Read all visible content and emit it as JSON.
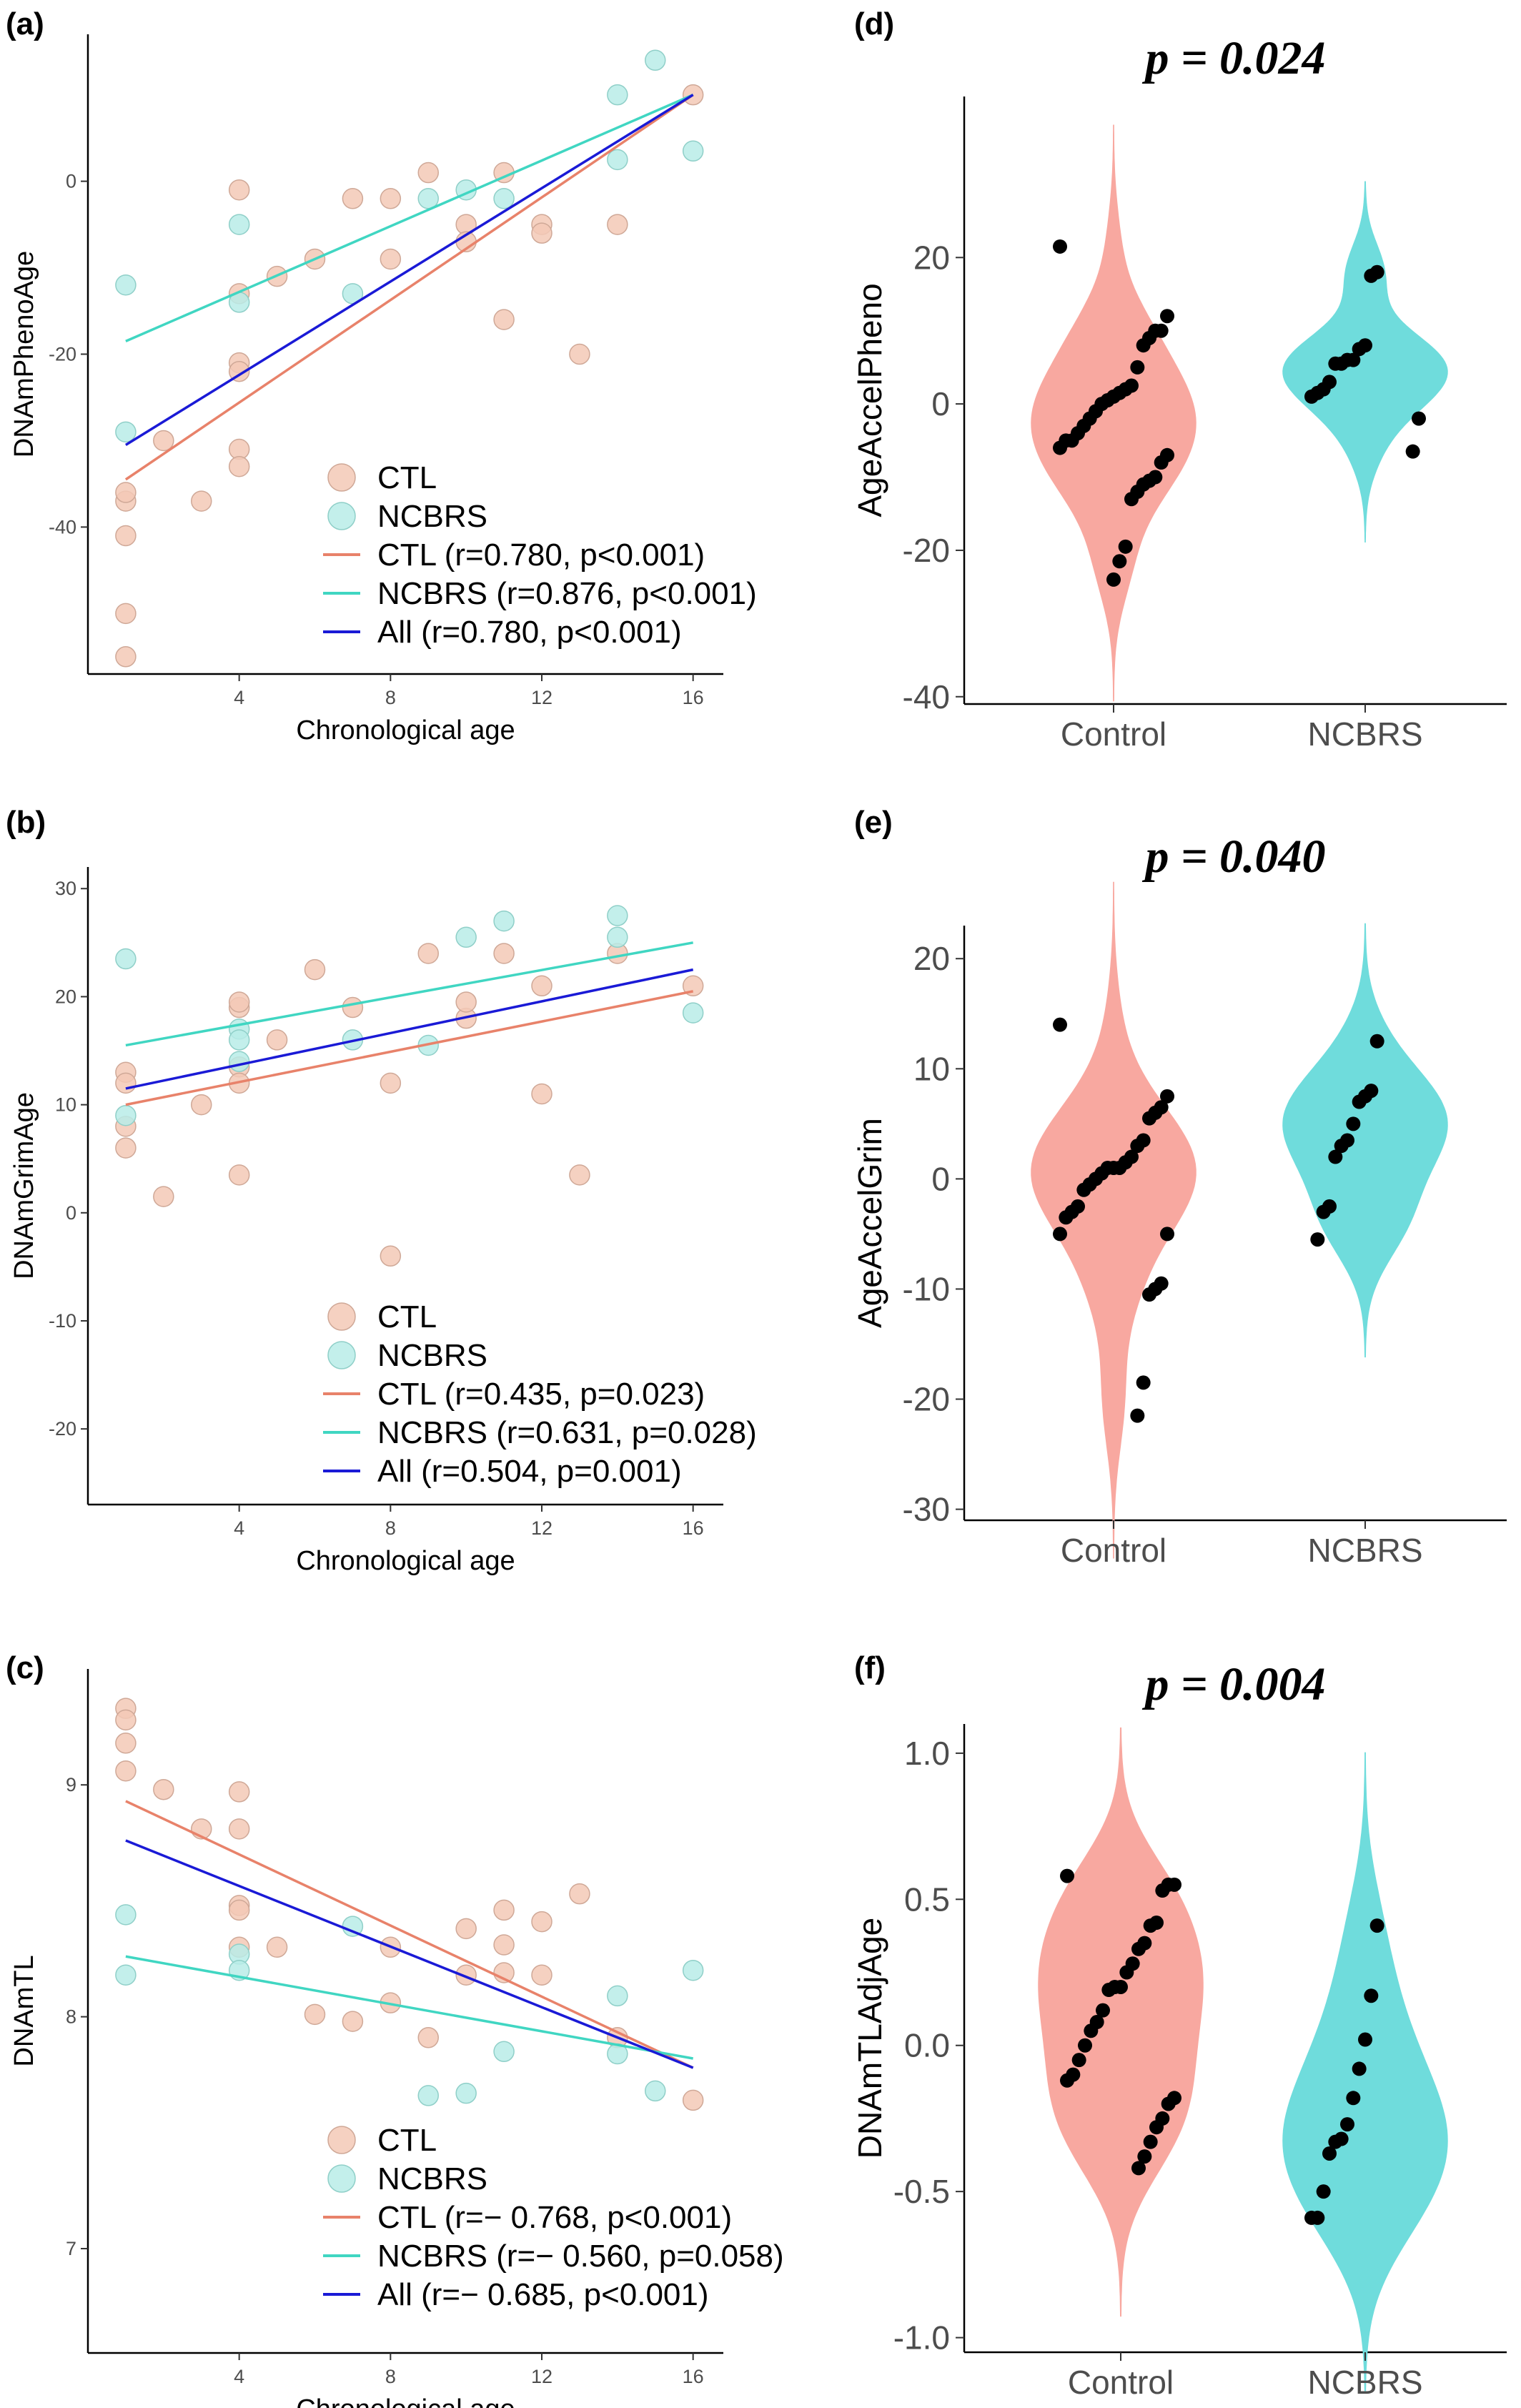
{
  "colors": {
    "ctl_point_fill": "#f3c9b6",
    "ctl_point_stroke": "#cfa897",
    "ncbrs_point_fill": "#b9ece7",
    "ncbrs_point_stroke": "#8fcfc8",
    "ctl_line": "#e8826a",
    "ncbrs_line": "#40d6c2",
    "all_line": "#1a1ad6",
    "violin_control": "#f8a8a0",
    "violin_ncbrs": "#6fdcdc",
    "dot": "#000000"
  },
  "chart_data": [
    {
      "panel": "(a)",
      "type": "scatter",
      "xlabel": "Chronological age",
      "ylabel": "DNAmPhenoAge",
      "xlim": [
        0,
        16.8
      ],
      "ylim": [
        -57,
        17
      ],
      "xticks": [
        4,
        8,
        12,
        16
      ],
      "yticks": [
        -40,
        -20,
        0
      ],
      "grid": false,
      "legend_position": "bottom-right",
      "legend": [
        {
          "kind": "point",
          "group": "ctl",
          "label": "CTL"
        },
        {
          "kind": "point",
          "group": "ncbrs",
          "label": "NCBRS"
        },
        {
          "kind": "line",
          "group": "ctl",
          "label": "CTL (r=0.780, p<0.001)"
        },
        {
          "kind": "line",
          "group": "ncbrs",
          "label": "NCBRS (r=0.876, p<0.001)"
        },
        {
          "kind": "line",
          "group": "all",
          "label": "All (r=0.780, p<0.001)"
        }
      ],
      "series": [
        {
          "group": "ctl",
          "kind": "points",
          "x": [
            1,
            1,
            1,
            1,
            1,
            2,
            3,
            4,
            4,
            4,
            4,
            4,
            4,
            5,
            6,
            7,
            8,
            8,
            9,
            10,
            10,
            11,
            11,
            12,
            12,
            13,
            14,
            16
          ],
          "y": [
            -37,
            -41,
            -50,
            -55,
            -36,
            -30,
            -37,
            -1,
            -21,
            -22,
            -31,
            -33,
            -13,
            -11,
            -9,
            -2,
            -2,
            -9,
            1,
            -5,
            -7,
            1,
            -16,
            -5,
            -6,
            -20,
            -5,
            10
          ]
        },
        {
          "group": "ncbrs",
          "kind": "points",
          "x": [
            1,
            1,
            4,
            4,
            7,
            9,
            10,
            11,
            14,
            14,
            15,
            16
          ],
          "y": [
            -12,
            -29,
            -5,
            -14,
            -13,
            -2,
            -1,
            -2,
            10,
            2.5,
            14,
            3.5
          ]
        },
        {
          "group": "ctl",
          "kind": "line",
          "x": [
            1,
            16
          ],
          "y": [
            -34.5,
            10
          ]
        },
        {
          "group": "ncbrs",
          "kind": "line",
          "x": [
            1,
            16
          ],
          "y": [
            -18.5,
            10
          ]
        },
        {
          "group": "all",
          "kind": "line",
          "x": [
            1,
            16
          ],
          "y": [
            -30.5,
            10
          ]
        }
      ]
    },
    {
      "panel": "(b)",
      "type": "scatter",
      "xlabel": "Chronological age",
      "ylabel": "DNAmGrimAge",
      "xlim": [
        0,
        16.8
      ],
      "ylim": [
        -27,
        32
      ],
      "xticks": [
        4,
        8,
        12,
        16
      ],
      "yticks": [
        -20,
        -10,
        0,
        10,
        20,
        30
      ],
      "grid": false,
      "legend_position": "bottom-right",
      "legend": [
        {
          "kind": "point",
          "group": "ctl",
          "label": "CTL"
        },
        {
          "kind": "point",
          "group": "ncbrs",
          "label": "NCBRS"
        },
        {
          "kind": "line",
          "group": "ctl",
          "label": "CTL (r=0.435, p=0.023)"
        },
        {
          "kind": "line",
          "group": "ncbrs",
          "label": "NCBRS (r=0.631, p=0.028)"
        },
        {
          "kind": "line",
          "group": "all",
          "label": "All (r=0.504, p=0.001)"
        }
      ],
      "series": [
        {
          "group": "ctl",
          "kind": "points",
          "x": [
            1,
            1,
            1,
            1,
            2,
            3,
            4,
            4,
            4,
            4,
            4,
            5,
            6,
            7,
            8,
            8,
            9,
            10,
            10,
            11,
            12,
            12,
            13,
            14,
            16
          ],
          "y": [
            13,
            12,
            8,
            6,
            1.5,
            10,
            19,
            13.5,
            12,
            3.5,
            19.5,
            16,
            22.5,
            19,
            12,
            -4,
            24,
            18,
            19.5,
            24,
            21,
            11,
            3.5,
            24,
            21
          ]
        },
        {
          "group": "ncbrs",
          "kind": "points",
          "x": [
            1,
            1,
            4,
            4,
            4,
            7,
            9,
            10,
            11,
            14,
            14,
            16
          ],
          "y": [
            23.5,
            9,
            17,
            16,
            14,
            16,
            15.5,
            25.5,
            27,
            27.5,
            25.5,
            18.5
          ]
        },
        {
          "group": "ctl",
          "kind": "line",
          "x": [
            1,
            16
          ],
          "y": [
            10,
            20.5
          ]
        },
        {
          "group": "ncbrs",
          "kind": "line",
          "x": [
            1,
            16
          ],
          "y": [
            15.5,
            25
          ]
        },
        {
          "group": "all",
          "kind": "line",
          "x": [
            1,
            16
          ],
          "y": [
            11.5,
            22.5
          ]
        }
      ]
    },
    {
      "panel": "(c)",
      "type": "scatter",
      "xlabel": "Chronological age",
      "ylabel": "DNAmTL",
      "xlim": [
        0,
        16.8
      ],
      "ylim": [
        6.55,
        9.5
      ],
      "xticks": [
        4,
        8,
        12,
        16
      ],
      "yticks": [
        7,
        8,
        9
      ],
      "grid": false,
      "legend_position": "bottom-right",
      "legend": [
        {
          "kind": "point",
          "group": "ctl",
          "label": "CTL"
        },
        {
          "kind": "point",
          "group": "ncbrs",
          "label": "NCBRS"
        },
        {
          "kind": "line",
          "group": "ctl",
          "label": "CTL (r=− 0.768, p<0.001)"
        },
        {
          "kind": "line",
          "group": "ncbrs",
          "label": "NCBRS (r=− 0.560, p=0.058)"
        },
        {
          "kind": "line",
          "group": "all",
          "label": "All (r=− 0.685, p<0.001)"
        }
      ],
      "series": [
        {
          "group": "ctl",
          "kind": "points",
          "x": [
            1,
            1,
            1,
            1,
            2,
            3,
            4,
            4,
            4,
            4,
            4,
            5,
            6,
            7,
            8,
            8,
            9,
            10,
            10,
            11,
            11,
            11,
            12,
            12,
            13,
            14,
            16
          ],
          "y": [
            9.33,
            9.28,
            9.18,
            9.06,
            8.98,
            8.81,
            8.97,
            8.81,
            8.48,
            8.46,
            8.3,
            8.3,
            8.01,
            7.98,
            8.3,
            8.06,
            7.91,
            8.38,
            8.18,
            8.46,
            8.31,
            8.19,
            8.41,
            8.18,
            8.53,
            7.91,
            7.64
          ]
        },
        {
          "group": "ncbrs",
          "kind": "points",
          "x": [
            1,
            1,
            4,
            4,
            7,
            9,
            10,
            11,
            14,
            14,
            15,
            16
          ],
          "y": [
            8.44,
            8.18,
            8.27,
            8.2,
            8.39,
            7.66,
            7.67,
            7.85,
            8.09,
            7.84,
            7.68,
            8.2
          ]
        },
        {
          "group": "ctl",
          "kind": "line",
          "x": [
            1,
            16
          ],
          "y": [
            8.93,
            7.78
          ]
        },
        {
          "group": "ncbrs",
          "kind": "line",
          "x": [
            1,
            16
          ],
          "y": [
            8.26,
            7.82
          ]
        },
        {
          "group": "all",
          "kind": "line",
          "x": [
            1,
            16
          ],
          "y": [
            8.76,
            7.78
          ]
        }
      ]
    },
    {
      "panel": "(d)",
      "type": "violin",
      "title": "p = 0.024",
      "ylabel": "AgeAccelPheno",
      "categories": [
        "Control",
        "NCBRS"
      ],
      "ylim": [
        -41,
        42
      ],
      "yticks": [
        -40,
        -20,
        0,
        20
      ],
      "grid": false,
      "series": [
        {
          "name": "Control",
          "values": [
            21.5,
            12,
            10,
            10,
            9,
            8,
            5,
            2.5,
            2,
            1.5,
            1,
            0.5,
            0,
            -1,
            -2,
            -3,
            -4,
            -5,
            -5,
            -6,
            -7,
            -8,
            -10,
            -10.5,
            -11,
            -12,
            -13,
            -19.5,
            -21.5,
            -24
          ]
        },
        {
          "name": "NCBRS",
          "values": [
            18,
            17.5,
            8,
            7.5,
            6,
            6,
            5.5,
            5.5,
            3,
            2,
            1.5,
            1,
            -2,
            -6.5
          ]
        }
      ]
    },
    {
      "panel": "(e)",
      "type": "violin",
      "title": "p = 0.040",
      "ylabel": "AgeAccelGrim",
      "categories": [
        "Control",
        "NCBRS"
      ],
      "ylim": [
        -31,
        23
      ],
      "yticks": [
        -30,
        -20,
        -10,
        0,
        10,
        20
      ],
      "grid": false,
      "series": [
        {
          "name": "Control",
          "values": [
            14,
            7.5,
            6.5,
            6,
            5.5,
            3.5,
            3,
            2,
            1.5,
            1,
            1,
            1,
            0.5,
            0,
            -0.5,
            -1,
            -2.5,
            -3,
            -3.5,
            -5,
            -5,
            -9.5,
            -10,
            -10.5,
            -18.5,
            -21.5
          ]
        },
        {
          "name": "NCBRS",
          "values": [
            12.5,
            8,
            7.5,
            7,
            5,
            3.5,
            3,
            2,
            -2.5,
            -3,
            -5.5
          ]
        }
      ]
    },
    {
      "panel": "(f)",
      "type": "violin",
      "title": "p = 0.004",
      "ylabel": "DNAmTLAdjAge",
      "categories": [
        "Control",
        "NCBRS"
      ],
      "ylim": [
        -1.05,
        1.1
      ],
      "yticks": [
        -1.0,
        -0.5,
        0.0,
        0.5,
        1.0
      ],
      "ytick_labels": [
        "-1.0",
        "-0.5",
        "0.0",
        "0.5",
        "1.0"
      ],
      "grid": false,
      "series": [
        {
          "name": "Control",
          "values": [
            0.58,
            0.55,
            0.55,
            0.53,
            0.42,
            0.41,
            0.35,
            0.33,
            0.28,
            0.25,
            0.2,
            0.2,
            0.19,
            0.12,
            0.08,
            0.05,
            0.0,
            -0.05,
            -0.1,
            -0.12,
            -0.18,
            -0.2,
            -0.25,
            -0.28,
            -0.33,
            -0.38,
            -0.42
          ]
        },
        {
          "name": "NCBRS",
          "values": [
            0.41,
            0.17,
            0.02,
            -0.08,
            -0.18,
            -0.27,
            -0.32,
            -0.33,
            -0.37,
            -0.5,
            -0.59,
            -0.59
          ]
        }
      ]
    }
  ]
}
